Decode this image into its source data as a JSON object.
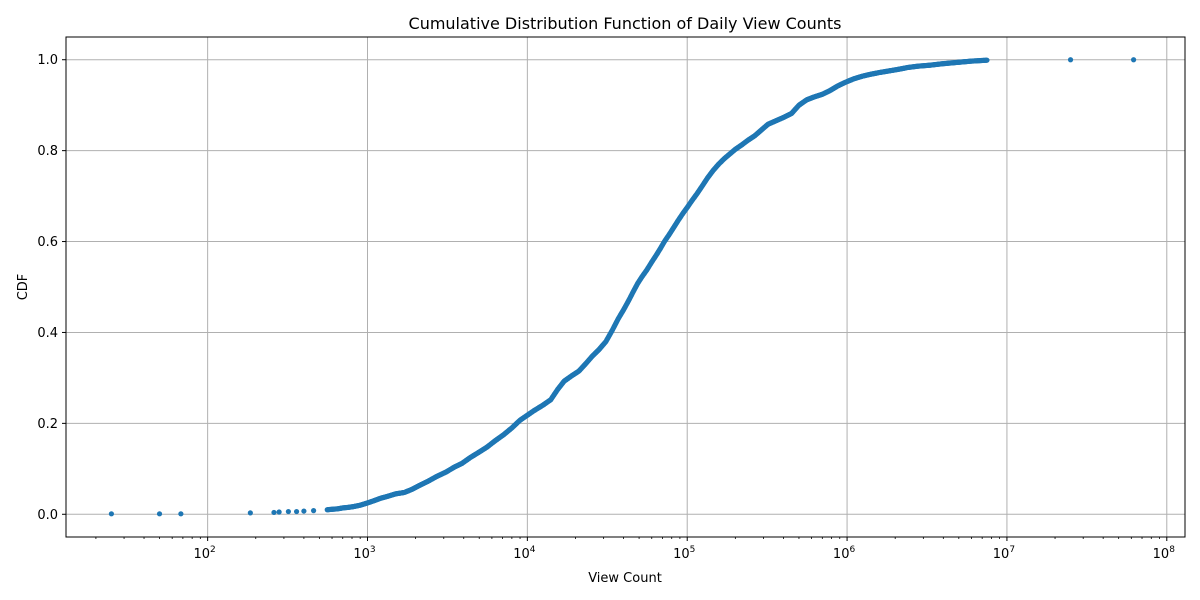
{
  "chart_data": {
    "type": "scatter",
    "title": "Cumulative Distribution Function of Daily View Counts",
    "xlabel": "View Count",
    "ylabel": "CDF",
    "xscale": "log",
    "xlim": [
      13,
      130000000
    ],
    "ylim": [
      -0.05,
      1.05
    ],
    "grid": true,
    "point_color": "#1f77b4",
    "x_ticks": [
      {
        "value": 100,
        "base": "10",
        "exp": "2"
      },
      {
        "value": 1000,
        "base": "10",
        "exp": "3"
      },
      {
        "value": 10000,
        "base": "10",
        "exp": "4"
      },
      {
        "value": 100000,
        "base": "10",
        "exp": "5"
      },
      {
        "value": 1000000,
        "base": "10",
        "exp": "6"
      },
      {
        "value": 10000000,
        "base": "10",
        "exp": "7"
      },
      {
        "value": 100000000,
        "base": "10",
        "exp": "8"
      }
    ],
    "y_ticks": [
      {
        "value": 0.0,
        "label": "0.0"
      },
      {
        "value": 0.2,
        "label": "0.2"
      },
      {
        "value": 0.4,
        "label": "0.4"
      },
      {
        "value": 0.6,
        "label": "0.6"
      },
      {
        "value": 0.8,
        "label": "0.8"
      },
      {
        "value": 1.0,
        "label": "1.0"
      }
    ],
    "series": [
      {
        "x": [
          25,
          50,
          68,
          185,
          260,
          280,
          320,
          360,
          400,
          460,
          560,
          600,
          650,
          700,
          750,
          820,
          900,
          1000,
          1100,
          1200,
          1350,
          1500,
          1700,
          1900,
          2100,
          2400,
          2700,
          3100,
          3500,
          3900,
          4400,
          5000,
          5600,
          6300,
          7100,
          8000,
          9000,
          10000,
          11000,
          12500,
          14000,
          15500,
          17000,
          19000,
          21000,
          23000,
          25500,
          28000,
          31000,
          34000,
          37000,
          40000,
          43000,
          46000,
          49000,
          52000,
          56000,
          60000,
          64000,
          68000,
          72000,
          77000,
          82000,
          88000,
          94000,
          100000,
          107000,
          115000,
          124000,
          134000,
          145000,
          157000,
          170000,
          185000,
          200000,
          220000,
          240000,
          265000,
          290000,
          320000,
          360000,
          400000,
          450000,
          500000,
          560000,
          620000,
          700000,
          780000,
          870000,
          970000,
          1100000,
          1250000,
          1400000,
          1600000,
          1800000,
          2100000,
          2400000,
          2800000,
          3300000,
          3900000,
          4500000,
          5200000,
          6000000,
          7500000,
          25000000,
          62000000
        ],
        "y": [
          0.001,
          0.001,
          0.001,
          0.003,
          0.004,
          0.005,
          0.006,
          0.006,
          0.007,
          0.008,
          0.01,
          0.011,
          0.012,
          0.014,
          0.015,
          0.017,
          0.02,
          0.025,
          0.03,
          0.035,
          0.04,
          0.045,
          0.048,
          0.055,
          0.063,
          0.073,
          0.083,
          0.093,
          0.104,
          0.112,
          0.125,
          0.137,
          0.148,
          0.162,
          0.175,
          0.19,
          0.207,
          0.218,
          0.228,
          0.24,
          0.252,
          0.275,
          0.293,
          0.305,
          0.315,
          0.33,
          0.348,
          0.362,
          0.38,
          0.405,
          0.43,
          0.45,
          0.47,
          0.49,
          0.508,
          0.522,
          0.538,
          0.555,
          0.57,
          0.585,
          0.6,
          0.615,
          0.63,
          0.647,
          0.662,
          0.675,
          0.69,
          0.705,
          0.722,
          0.74,
          0.756,
          0.77,
          0.782,
          0.793,
          0.803,
          0.813,
          0.823,
          0.833,
          0.845,
          0.858,
          0.866,
          0.873,
          0.882,
          0.9,
          0.912,
          0.918,
          0.924,
          0.932,
          0.942,
          0.95,
          0.958,
          0.964,
          0.968,
          0.972,
          0.975,
          0.979,
          0.983,
          0.986,
          0.988,
          0.991,
          0.993,
          0.995,
          0.997,
          0.999,
          1.0,
          1.0
        ]
      }
    ]
  }
}
